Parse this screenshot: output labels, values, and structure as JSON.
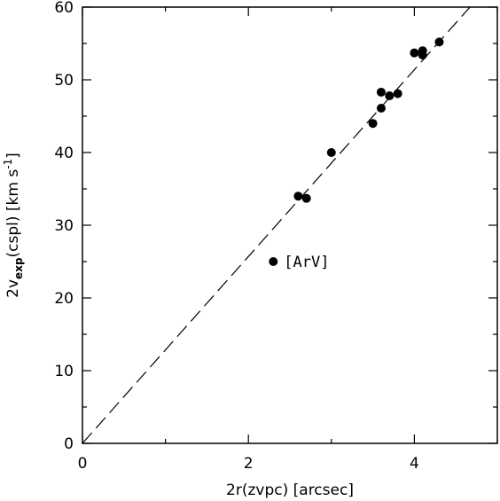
{
  "chart_data": {
    "type": "scatter",
    "title": "",
    "xlabel": "2r(zvpc) [arcsec]",
    "ylabel": {
      "base": "2v",
      "sub": "exp",
      "rest": "(cspl) [km s",
      "sup": "-1",
      "close": "]"
    },
    "xlim": [
      0,
      5
    ],
    "ylim": [
      0,
      60
    ],
    "x_major_ticks": [
      0,
      2,
      4
    ],
    "x_minor_step": 1,
    "y_major_ticks": [
      0,
      10,
      20,
      30,
      40,
      50,
      60
    ],
    "y_minor_step": 5,
    "grid": false,
    "series": [
      {
        "points": [
          {
            "x": 2.3,
            "y": 25.0
          },
          {
            "x": 2.6,
            "y": 34.0
          },
          {
            "x": 2.7,
            "y": 33.7
          },
          {
            "x": 3.0,
            "y": 40.0
          },
          {
            "x": 3.5,
            "y": 44.0
          },
          {
            "x": 3.6,
            "y": 46.1
          },
          {
            "x": 3.6,
            "y": 48.3
          },
          {
            "x": 3.7,
            "y": 47.8
          },
          {
            "x": 3.8,
            "y": 48.1
          },
          {
            "x": 4.0,
            "y": 53.7
          },
          {
            "x": 4.1,
            "y": 54.0
          },
          {
            "x": 4.1,
            "y": 53.4
          },
          {
            "x": 4.3,
            "y": 55.2
          }
        ]
      }
    ],
    "annotations": [
      {
        "text": "[ArV]",
        "x": 2.3,
        "y": 25.0
      }
    ],
    "reference_line": {
      "style": "dashed",
      "x": [
        0,
        4.67
      ],
      "y": [
        0,
        60
      ]
    }
  }
}
